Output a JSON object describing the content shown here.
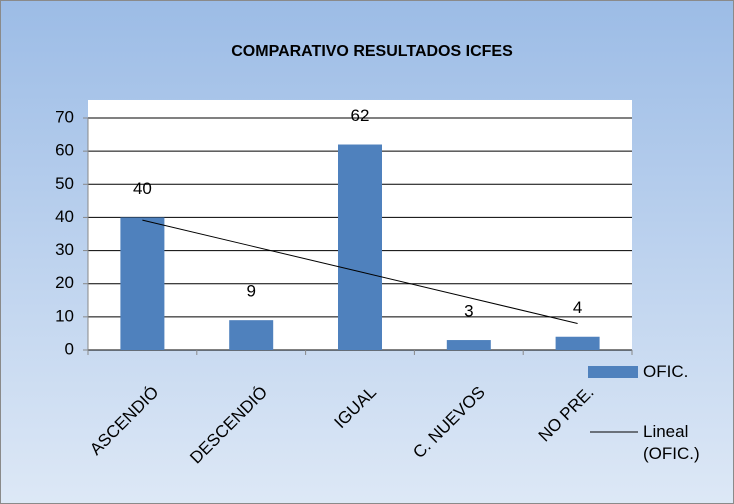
{
  "chart_data": {
    "type": "bar",
    "title": "COMPARATIVO RESULTADOS ICFES",
    "categories": [
      "ASCENDIÓ",
      "DESCENDIÓ",
      "IGUAL",
      "C. NUEVOS",
      "NO PRE."
    ],
    "series": [
      {
        "name": "OFIC.",
        "type": "bar",
        "color": "#4f81bd",
        "values": [
          40,
          9,
          62,
          3,
          4
        ]
      },
      {
        "name": "Lineal (OFIC.)",
        "type": "line",
        "color": "#000000",
        "values": [
          39.2,
          31.4,
          23.6,
          15.8,
          8.0
        ]
      }
    ],
    "ylim": [
      0,
      70
    ],
    "yticks": [
      0,
      10,
      20,
      30,
      40,
      50,
      60,
      70
    ],
    "grid": true,
    "legend": "right"
  }
}
